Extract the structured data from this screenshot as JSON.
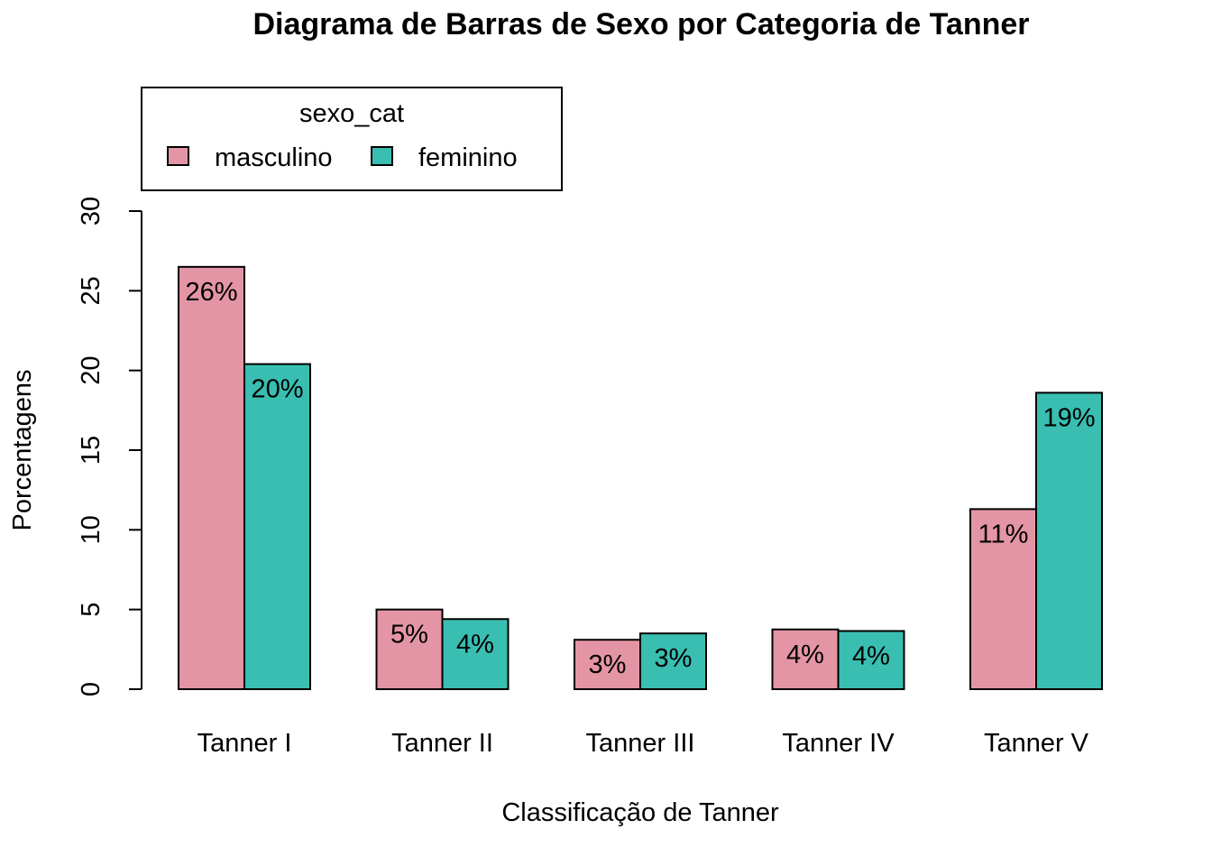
{
  "chart_data": {
    "type": "bar",
    "title": "Diagrama de Barras de Sexo por Categoria de Tanner",
    "xlabel": "Classificação de Tanner",
    "ylabel": "Porcentagens",
    "ylim": [
      0,
      30
    ],
    "yticks": [
      0,
      5,
      10,
      15,
      20,
      25,
      30
    ],
    "categories": [
      "Tanner I",
      "Tanner II",
      "Tanner III",
      "Tanner IV",
      "Tanner V"
    ],
    "series": [
      {
        "name": "masculino",
        "color": "#E495A5",
        "values": [
          26.5,
          5.0,
          3.1,
          3.75,
          11.3
        ],
        "labels": [
          "26%",
          "5%",
          "3%",
          "4%",
          "11%"
        ]
      },
      {
        "name": "feminino",
        "color": "#39BEB1",
        "values": [
          20.4,
          4.4,
          3.5,
          3.65,
          18.6
        ],
        "labels": [
          "20%",
          "4%",
          "3%",
          "4%",
          "19%"
        ]
      }
    ],
    "legend": {
      "title": "sexo_cat",
      "position": "top-left"
    },
    "grid": false
  }
}
